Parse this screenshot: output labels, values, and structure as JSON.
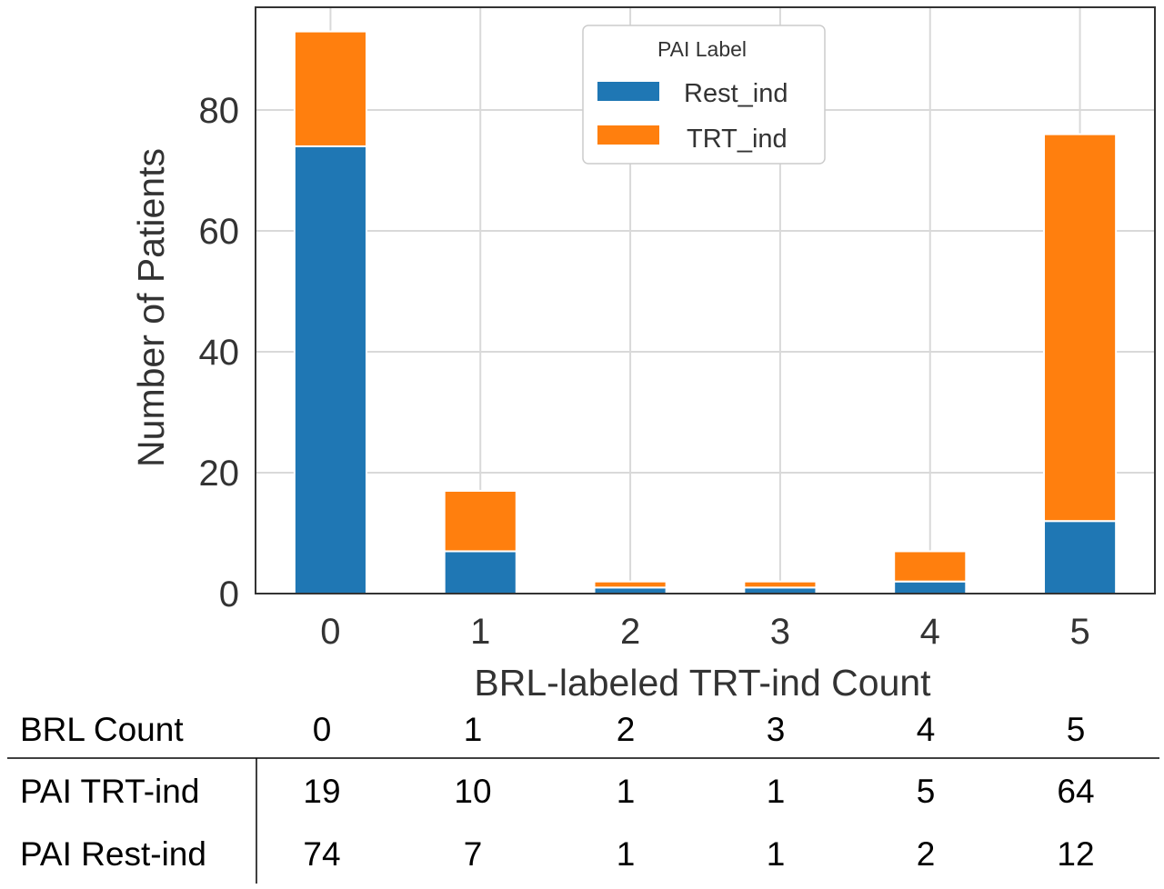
{
  "chart_data": {
    "type": "bar",
    "stacked": true,
    "categories": [
      "0",
      "1",
      "2",
      "3",
      "4",
      "5"
    ],
    "series": [
      {
        "name": "Rest_ind",
        "values": [
          74,
          7,
          1,
          1,
          2,
          12
        ],
        "color": "#1f77b4"
      },
      {
        "name": "TRT_ind",
        "values": [
          19,
          10,
          1,
          1,
          5,
          64
        ],
        "color": "#ff7f0e"
      }
    ],
    "xlabel": "BRL-labeled TRT-ind Count",
    "ylabel": "Number of Patients",
    "ylim": [
      0,
      97
    ],
    "yticks": [
      0,
      20,
      40,
      60,
      80
    ],
    "grid": true,
    "legend": {
      "title": "PAI Label",
      "placement": "top-center"
    }
  },
  "table": {
    "header_label": "BRL Count",
    "columns": [
      "0",
      "1",
      "2",
      "3",
      "4",
      "5"
    ],
    "rows": [
      {
        "label": "PAI TRT-ind",
        "values": [
          "19",
          "10",
          "1",
          "1",
          "5",
          "64"
        ]
      },
      {
        "label": "PAI Rest-ind",
        "values": [
          "74",
          "7",
          "1",
          "1",
          "2",
          "12"
        ]
      }
    ]
  }
}
